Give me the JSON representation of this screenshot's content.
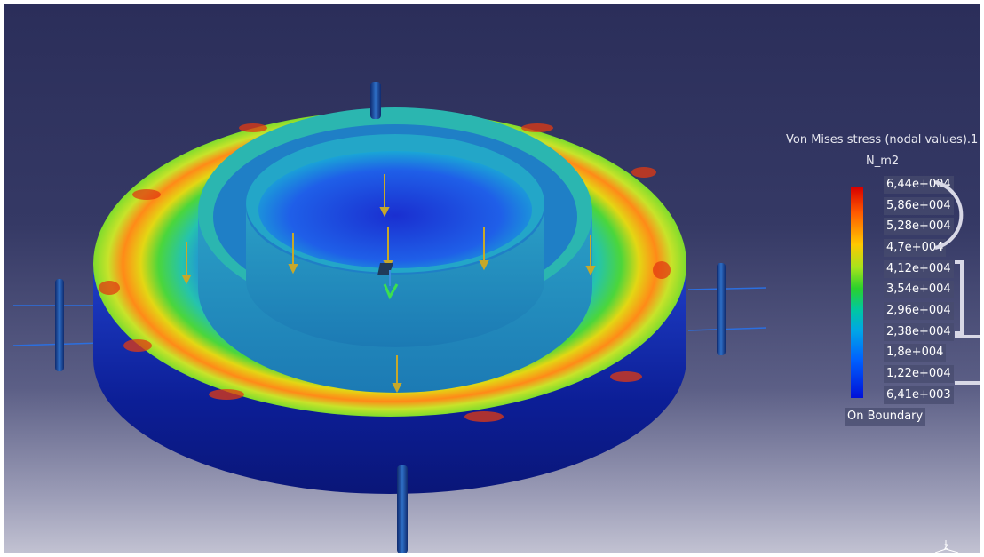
{
  "legend": {
    "title": "Von Mises stress (nodal values).1",
    "unit": "N_m2",
    "values": [
      "6,44e+004",
      "5,86e+004",
      "5,28e+004",
      "4,7e+004",
      "4,12e+004",
      "3,54e+004",
      "2,96e+004",
      "2,38e+004",
      "1,8e+004",
      "1,22e+004",
      "6,41e+003"
    ],
    "footer": "On Boundary"
  },
  "axis": {
    "label": "z"
  },
  "colors": {
    "max": "#d70000",
    "high": "#ff5a00",
    "mid_high": "#ffc800",
    "mid": "#2ad12c",
    "mid_low": "#00a6e6",
    "min": "#0010d8",
    "background_top": "#2b2e5a",
    "background_bottom": "#c2c2d2"
  },
  "icons": [
    "load-arrow-icon",
    "restraint-post-icon",
    "compass-axis-icon"
  ]
}
